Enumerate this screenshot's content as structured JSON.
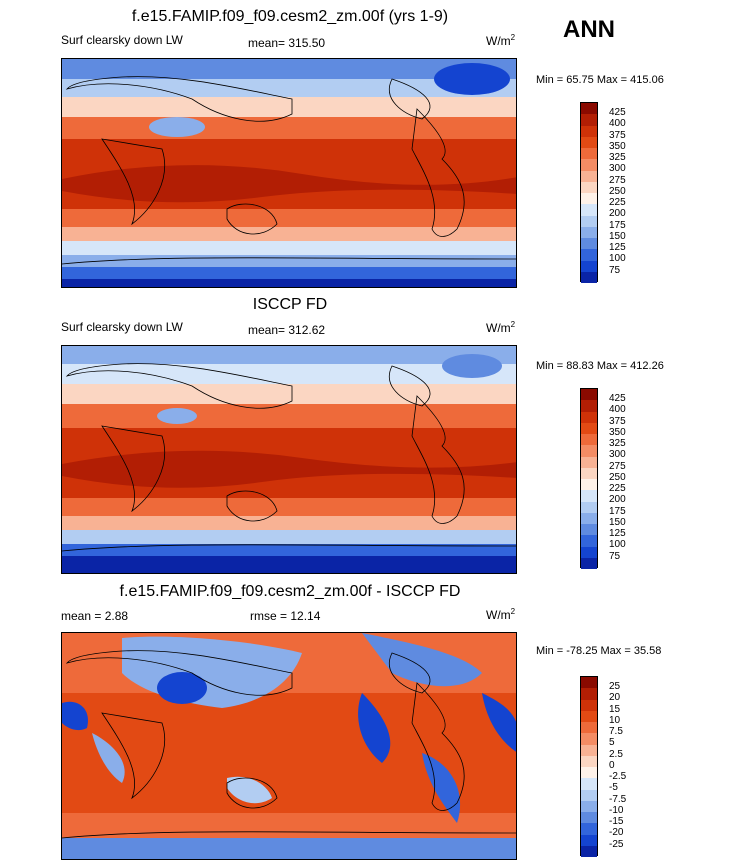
{
  "season": "ANN",
  "panels": [
    {
      "title": "f.e15.FAMIP.f09_f09.cesm2_zm.00f (yrs 1-9)",
      "left_label": "Surf clearsky down LW",
      "center_label": "mean= 315.50",
      "units_base": "W/m",
      "units_exp": "2",
      "minmax": "Min =  65.75 Max = 415.06",
      "colorbar": {
        "labels": [
          "425",
          "400",
          "375",
          "350",
          "325",
          "300",
          "275",
          "250",
          "225",
          "200",
          "175",
          "150",
          "125",
          "100",
          "75"
        ],
        "colors": [
          "#8a0a00",
          "#b21e04",
          "#cf3208",
          "#e24a14",
          "#ee6a3a",
          "#f48c64",
          "#f8b294",
          "#fbd6c2",
          "#fef2e9",
          "#d6e6f9",
          "#b2cdf2",
          "#8aaeea",
          "#5f8be0",
          "#3265db",
          "#1444d0",
          "#0a24a6"
        ]
      },
      "chart_data": {
        "type": "heatmap",
        "title": "f.e15.FAMIP.f09_f09.cesm2_zm.00f (yrs 1-9)",
        "variable": "Surf clearsky down LW",
        "mean": 315.5,
        "min": 65.75,
        "max": 415.06,
        "contour_levels": [
          75,
          100,
          125,
          150,
          175,
          200,
          225,
          250,
          275,
          300,
          325,
          350,
          375,
          400,
          425
        ]
      }
    },
    {
      "title": "ISCCP FD",
      "left_label": "Surf clearsky down LW",
      "center_label": "mean= 312.62",
      "units_base": "W/m",
      "units_exp": "2",
      "minmax": "Min =  88.83 Max = 412.26",
      "colorbar": {
        "labels": [
          "425",
          "400",
          "375",
          "350",
          "325",
          "300",
          "275",
          "250",
          "225",
          "200",
          "175",
          "150",
          "125",
          "100",
          "75"
        ],
        "colors": [
          "#8a0a00",
          "#b21e04",
          "#cf3208",
          "#e24a14",
          "#ee6a3a",
          "#f48c64",
          "#f8b294",
          "#fbd6c2",
          "#fef2e9",
          "#d6e6f9",
          "#b2cdf2",
          "#8aaeea",
          "#5f8be0",
          "#3265db",
          "#1444d0",
          "#0a24a6"
        ]
      },
      "chart_data": {
        "type": "heatmap",
        "title": "ISCCP FD",
        "variable": "Surf clearsky down LW",
        "mean": 312.62,
        "min": 88.83,
        "max": 412.26,
        "contour_levels": [
          75,
          100,
          125,
          150,
          175,
          200,
          225,
          250,
          275,
          300,
          325,
          350,
          375,
          400,
          425
        ]
      }
    },
    {
      "title": "f.e15.FAMIP.f09_f09.cesm2_zm.00f - ISCCP FD",
      "left_label": "mean =   2.88",
      "center_label": "rmse =  12.14",
      "units_base": "W/m",
      "units_exp": "2",
      "minmax": "Min = -78.25 Max =  35.58",
      "colorbar": {
        "labels": [
          "25",
          "20",
          "15",
          "10",
          "7.5",
          "5",
          "2.5",
          "0",
          "-2.5",
          "-5",
          "-7.5",
          "-10",
          "-15",
          "-20",
          "-25"
        ],
        "colors": [
          "#8a0a00",
          "#b21e04",
          "#cf3208",
          "#e24a14",
          "#ee6a3a",
          "#f48c64",
          "#f8b294",
          "#fbd6c2",
          "#fef2e9",
          "#d6e6f9",
          "#b2cdf2",
          "#8aaeea",
          "#5f8be0",
          "#3265db",
          "#1444d0",
          "#0a24a6"
        ]
      },
      "chart_data": {
        "type": "heatmap",
        "title": "f.e15.FAMIP.f09_f09.cesm2_zm.00f - ISCCP FD",
        "mean": 2.88,
        "rmse": 12.14,
        "min": -78.25,
        "max": 35.58,
        "contour_levels": [
          -25,
          -20,
          -15,
          -10,
          -7.5,
          -5,
          -2.5,
          0,
          2.5,
          5,
          7.5,
          10,
          15,
          20,
          25
        ]
      }
    }
  ]
}
